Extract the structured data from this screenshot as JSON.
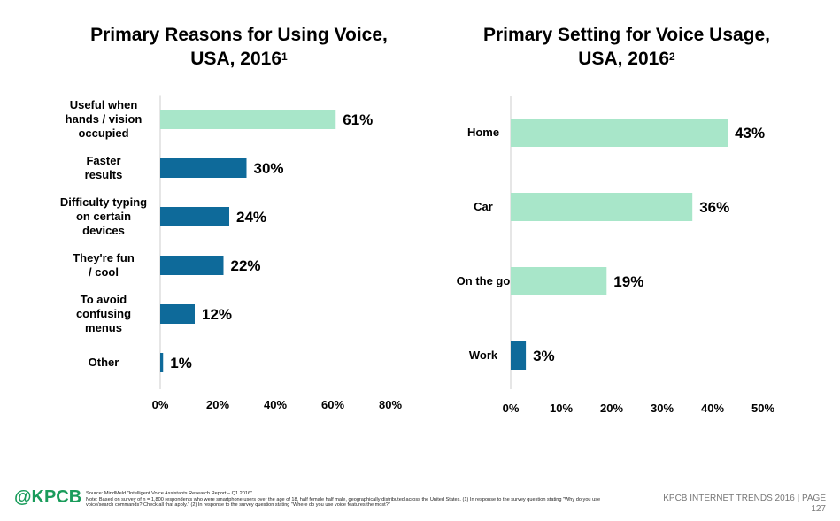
{
  "chart_data": [
    {
      "type": "bar",
      "orientation": "horizontal",
      "title": "Primary Reasons for Using Voice, USA, 2016",
      "title_line1": "Primary Reasons for Using Voice,",
      "title_line2": "USA, 2016",
      "title_sup": "1",
      "categories": [
        [
          "Useful when",
          "hands / vision",
          "occupied"
        ],
        [
          "Faster",
          "results"
        ],
        [
          "Difficulty typing",
          "on certain",
          "devices"
        ],
        [
          "They're fun",
          "/ cool"
        ],
        [
          "To avoid",
          "confusing",
          "menus"
        ],
        [
          "Other"
        ]
      ],
      "values": [
        61,
        30,
        24,
        22,
        12,
        1
      ],
      "value_labels": [
        "61%",
        "30%",
        "24%",
        "22%",
        "12%",
        "1%"
      ],
      "bar_colors": [
        "#a8e6c9",
        "#0e6a9a",
        "#0e6a9a",
        "#0e6a9a",
        "#0e6a9a",
        "#0e6a9a"
      ],
      "xlim": [
        0,
        80
      ],
      "ticks": [
        "0%",
        "20%",
        "40%",
        "60%",
        "80%"
      ],
      "grid": false
    },
    {
      "type": "bar",
      "orientation": "horizontal",
      "title": "Primary Setting for Voice Usage, USA, 2016",
      "title_line1": "Primary Setting for Voice Usage,",
      "title_line2": "USA, 2016",
      "title_sup": "2",
      "categories": [
        [
          "Home"
        ],
        [
          "Car"
        ],
        [
          "On the go"
        ],
        [
          "Work"
        ]
      ],
      "values": [
        43,
        36,
        19,
        3
      ],
      "value_labels": [
        "43%",
        "36%",
        "19%",
        "3%"
      ],
      "bar_colors": [
        "#a8e6c9",
        "#a8e6c9",
        "#a8e6c9",
        "#0e6a9a"
      ],
      "xlim": [
        0,
        50
      ],
      "ticks": [
        "0%",
        "10%",
        "20%",
        "30%",
        "40%",
        "50%"
      ],
      "grid": false
    }
  ],
  "footer": {
    "logo": "@KPCB",
    "source": "Source: MindMeld \"Intelligent Voice Assistants Research Report – Q1 2016\"",
    "note": "Note: Based on survey of n = 1,800 respondents who were smartphone users over the age of 18, half female half male, geographically distributed across the United States. (1) In response to the survey question stating \"Why do you use voice/search commands? Check all that apply.\" (2) In response to the survey question stating \"Where do you use voice features the most?\"",
    "brand_line": "KPCB INTERNET TRENDS 2016  |  PAGE",
    "page": "127"
  },
  "colors": {
    "light_green": "#a8e6c9",
    "dark_blue": "#0e6a9a",
    "logo_green": "#1a9c5b"
  }
}
